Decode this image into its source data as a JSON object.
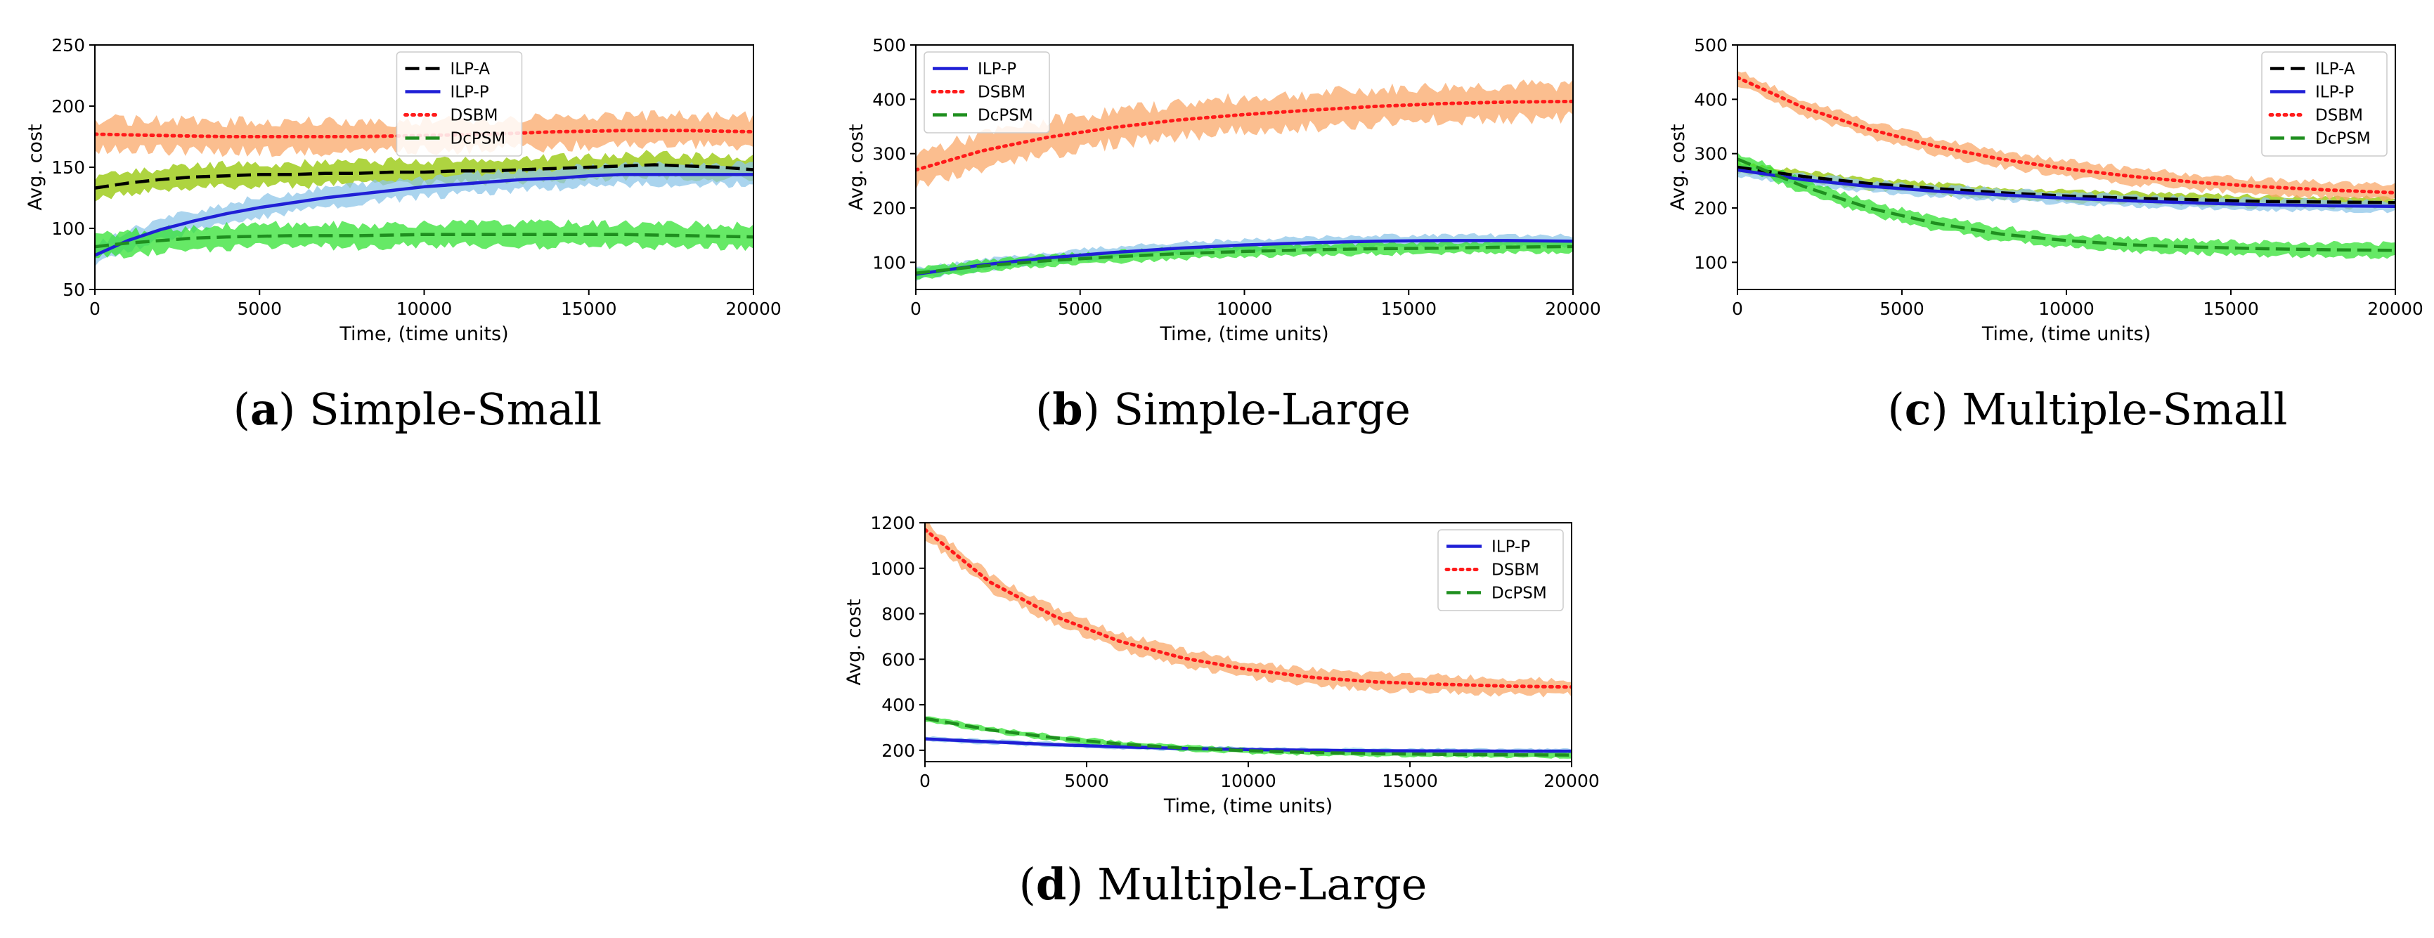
{
  "colors": {
    "ilp_a": "#000000",
    "ilp_p": "#1f1fd6",
    "dsbm": "#ff1a1a",
    "dcpsm": "#1f8f1f",
    "ilp_a_band": "#93c600",
    "ilp_p_band": "#8ec5e8",
    "dsbm_band": "#f9a86a",
    "dcpsm_band": "#33e233"
  },
  "chart_data": [
    {
      "id": "a",
      "type": "line",
      "caption_letter": "a",
      "caption_name": "Simple-Small",
      "xlabel": "Time, (time units)",
      "ylabel": "Avg. cost",
      "xlim": [
        0,
        20000
      ],
      "ylim": [
        50,
        250
      ],
      "xticks": [
        0,
        5000,
        10000,
        15000,
        20000
      ],
      "yticks": [
        50,
        100,
        150,
        200,
        250
      ],
      "legend_position": "top-center",
      "series": [
        {
          "name": "ILP-A",
          "key": "ilp_a",
          "style": "dashed",
          "band": 9,
          "x": [
            0,
            1000,
            2000,
            3000,
            4000,
            5000,
            6000,
            7000,
            8000,
            9000,
            10000,
            11000,
            12000,
            13000,
            14000,
            15000,
            16000,
            17000,
            18000,
            19000,
            20000
          ],
          "y": [
            133,
            137,
            140,
            142,
            143,
            144,
            144,
            145,
            145,
            146,
            146,
            147,
            147,
            148,
            149,
            150,
            151,
            152,
            151,
            150,
            148
          ]
        },
        {
          "name": "ILP-P",
          "key": "ilp_p",
          "style": "solid",
          "band": 8,
          "x": [
            0,
            1000,
            2000,
            3000,
            4000,
            5000,
            6000,
            7000,
            8000,
            9000,
            10000,
            11000,
            12000,
            13000,
            14000,
            15000,
            16000,
            17000,
            18000,
            19000,
            20000
          ],
          "y": [
            78,
            90,
            99,
            106,
            112,
            117,
            121,
            125,
            128,
            131,
            134,
            136,
            138,
            140,
            141,
            143,
            144,
            144,
            144,
            144,
            144
          ]
        },
        {
          "name": "DSBM",
          "key": "dsbm",
          "style": "dotted",
          "band": 12,
          "x": [
            0,
            2000,
            4000,
            6000,
            8000,
            10000,
            12000,
            14000,
            16000,
            18000,
            20000
          ],
          "y": [
            177,
            176,
            175,
            175,
            175,
            176,
            177,
            179,
            180,
            180,
            179
          ]
        },
        {
          "name": "DcPSM",
          "key": "dcpsm",
          "style": "dashed",
          "band": 9,
          "x": [
            0,
            1000,
            2000,
            3000,
            4000,
            6000,
            8000,
            10000,
            12000,
            14000,
            16000,
            18000,
            20000
          ],
          "y": [
            85,
            88,
            90,
            92,
            93,
            94,
            94,
            95,
            95,
            95,
            95,
            94,
            93
          ]
        }
      ]
    },
    {
      "id": "b",
      "type": "line",
      "caption_letter": "b",
      "caption_name": "Simple-Large",
      "xlabel": "Time, (time units)",
      "ylabel": "Avg. cost",
      "xlim": [
        0,
        20000
      ],
      "ylim": [
        50,
        500
      ],
      "xticks": [
        0,
        5000,
        10000,
        15000,
        20000
      ],
      "yticks": [
        100,
        200,
        300,
        400,
        500
      ],
      "legend_position": "top-left",
      "series": [
        {
          "name": "ILP-P",
          "key": "ilp_p",
          "style": "solid",
          "band": 10,
          "x": [
            0,
            2000,
            4000,
            6000,
            8000,
            10000,
            12000,
            14000,
            16000,
            18000,
            20000
          ],
          "y": [
            78,
            95,
            108,
            118,
            126,
            132,
            136,
            139,
            140,
            140,
            139
          ]
        },
        {
          "name": "DSBM",
          "key": "dsbm",
          "style": "dotted",
          "band": 30,
          "x": [
            0,
            2000,
            4000,
            6000,
            8000,
            10000,
            12000,
            14000,
            16000,
            18000,
            20000
          ],
          "y": [
            270,
            305,
            330,
            348,
            362,
            372,
            380,
            387,
            392,
            395,
            396
          ]
        },
        {
          "name": "DcPSM",
          "key": "dcpsm",
          "style": "dashed",
          "band": 10,
          "x": [
            0,
            2000,
            4000,
            6000,
            8000,
            10000,
            12000,
            14000,
            16000,
            18000,
            20000
          ],
          "y": [
            80,
            93,
            103,
            110,
            116,
            120,
            123,
            125,
            126,
            128,
            129
          ]
        }
      ]
    },
    {
      "id": "c",
      "type": "line",
      "caption_letter": "c",
      "caption_name": "Multiple-Small",
      "xlabel": "Time, (time units)",
      "ylabel": "Avg. cost",
      "xlim": [
        0,
        20000
      ],
      "ylim": [
        50,
        500
      ],
      "xticks": [
        0,
        5000,
        10000,
        15000,
        20000
      ],
      "yticks": [
        100,
        200,
        300,
        400,
        500
      ],
      "legend_position": "top-right",
      "series": [
        {
          "name": "ILP-A",
          "key": "ilp_a",
          "style": "dashed",
          "band": 10,
          "x": [
            0,
            2000,
            4000,
            6000,
            8000,
            10000,
            12000,
            14000,
            16000,
            18000,
            20000
          ],
          "y": [
            275,
            258,
            245,
            236,
            228,
            222,
            218,
            215,
            212,
            211,
            210
          ]
        },
        {
          "name": "ILP-P",
          "key": "ilp_p",
          "style": "solid",
          "band": 10,
          "x": [
            0,
            2000,
            4000,
            6000,
            8000,
            10000,
            12000,
            14000,
            16000,
            18000,
            20000
          ],
          "y": [
            270,
            252,
            240,
            231,
            224,
            218,
            213,
            209,
            206,
            204,
            203
          ]
        },
        {
          "name": "DSBM",
          "key": "dsbm",
          "style": "dotted",
          "band": 14,
          "x": [
            0,
            2000,
            4000,
            6000,
            8000,
            10000,
            12000,
            14000,
            16000,
            18000,
            20000
          ],
          "y": [
            440,
            385,
            345,
            314,
            290,
            272,
            258,
            247,
            239,
            233,
            228
          ]
        },
        {
          "name": "DcPSM",
          "key": "dcpsm",
          "style": "dashed",
          "band": 12,
          "x": [
            0,
            2000,
            4000,
            6000,
            8000,
            10000,
            12000,
            14000,
            16000,
            18000,
            20000
          ],
          "y": [
            290,
            240,
            200,
            172,
            152,
            140,
            132,
            128,
            125,
            123,
            122
          ]
        }
      ]
    },
    {
      "id": "d",
      "type": "line",
      "caption_letter": "d",
      "caption_name": "Multiple-Large",
      "xlabel": "Time, (time units)",
      "ylabel": "Avg. cost",
      "xlim": [
        0,
        20000
      ],
      "ylim": [
        150,
        1200
      ],
      "xticks": [
        0,
        5000,
        10000,
        15000,
        20000
      ],
      "yticks": [
        200,
        400,
        600,
        800,
        1000,
        1200
      ],
      "legend_position": "top-right",
      "series": [
        {
          "name": "ILP-P",
          "key": "ilp_p",
          "style": "solid",
          "band": 10,
          "x": [
            0,
            2000,
            4000,
            6000,
            8000,
            10000,
            12000,
            14000,
            16000,
            18000,
            20000
          ],
          "y": [
            250,
            237,
            225,
            215,
            208,
            203,
            200,
            198,
            197,
            196,
            196
          ]
        },
        {
          "name": "DSBM",
          "key": "dsbm",
          "style": "dotted",
          "band": 35,
          "x": [
            0,
            2000,
            4000,
            6000,
            8000,
            10000,
            12000,
            14000,
            16000,
            18000,
            20000
          ],
          "y": [
            1170,
            940,
            790,
            680,
            605,
            555,
            520,
            500,
            490,
            482,
            478
          ]
        },
        {
          "name": "DcPSM",
          "key": "dcpsm",
          "style": "dashed",
          "band": 12,
          "x": [
            0,
            2000,
            4000,
            6000,
            8000,
            10000,
            12000,
            14000,
            16000,
            18000,
            20000
          ],
          "y": [
            340,
            290,
            255,
            228,
            210,
            198,
            190,
            185,
            182,
            180,
            179
          ]
        }
      ]
    }
  ]
}
